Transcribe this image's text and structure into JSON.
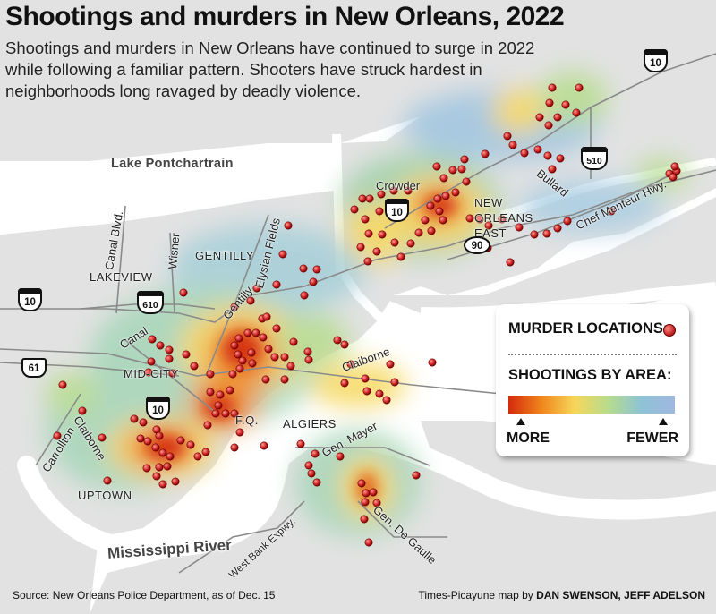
{
  "header": {
    "title": "Shootings and murders in New Orleans, 2022",
    "subtitle": "Shootings and murders in New Orleans have continued to surge in 2022 while following a familiar pattern. Shooters have struck hardest in neighborhoods long ravaged by deadly violence."
  },
  "legend": {
    "murders_label": "MURDER LOCATIONS:",
    "shootings_label": "SHOOTINGS BY AREA:",
    "more_label": "MORE",
    "fewer_label": "FEWER",
    "ramp_colors": [
      "#d42a0c",
      "#f0861c",
      "#f6d75a",
      "#b6dc8c",
      "#8ec3d6",
      "#9fb6e0"
    ],
    "murder_color": "#d32f2f"
  },
  "map_labels": {
    "lake": "Lake Pontchartrain",
    "river": "Mississippi River",
    "lakeview": "LAKEVIEW",
    "gentilly": "GENTILLY",
    "mid_city": "MID-CITY",
    "uptown": "UPTOWN",
    "algiers": "ALGIERS",
    "fq": "F.Q.",
    "new_orleans_east": "NEW ORLEANS EAST",
    "canal_blvd": "Canal Blvd.",
    "wisner": "Wisner",
    "elysian_fields": "Elysian Fields",
    "gentilly_road": "Gentilly",
    "canal": "Canal",
    "claiborne_up": "Claiborne",
    "claiborne_east": "Claiborne",
    "carrollton": "Carrollton",
    "gen_mayer": "Gen. Mayer",
    "gen_de_gaulle": "Gen. De Gaulle",
    "west_bank_expwy": "West Bank Expwy.",
    "crowder": "Crowder",
    "bullard": "Bullard",
    "chef_menteur": "Chef Menteur Hwy."
  },
  "shields": {
    "i10_west": "10",
    "i610": "610",
    "us61": "61",
    "i10_mid": "10",
    "i10_east": "10",
    "us90": "90",
    "i510": "510",
    "i10_ne": "10"
  },
  "footer": {
    "source": "Source: New Orleans Police Department, as of Dec. 15",
    "credit_prefix": "Times-Picayune map by ",
    "credit_names": "DAN SWENSON, JEFF ADELSON"
  }
}
